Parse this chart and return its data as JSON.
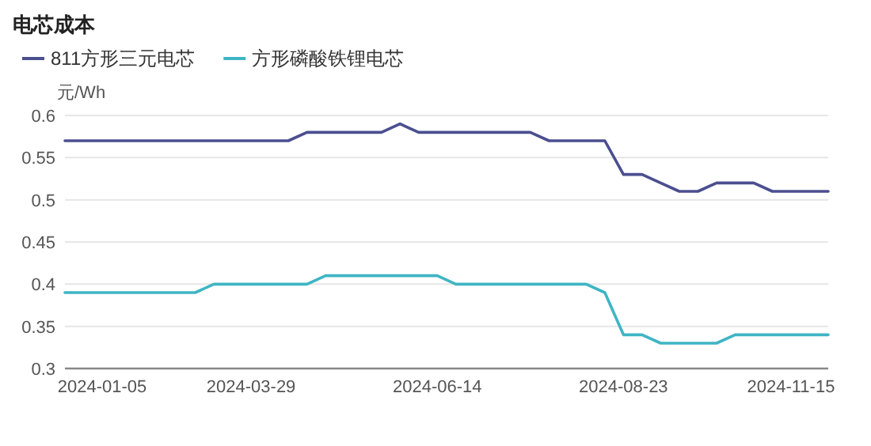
{
  "chart_data": {
    "type": "line",
    "title": "电芯成本",
    "ylabel": "元/Wh",
    "categories": [
      null,
      null,
      "2024-01-05",
      null,
      null,
      null,
      null,
      null,
      null,
      null,
      "2024-03-29",
      null,
      null,
      null,
      null,
      null,
      null,
      null,
      null,
      null,
      "2024-06-14",
      null,
      null,
      null,
      null,
      null,
      null,
      null,
      null,
      null,
      "2024-08-23",
      null,
      null,
      null,
      null,
      null,
      null,
      null,
      null,
      "2024-11-15",
      null,
      null
    ],
    "series": [
      {
        "name": "811方形三元电芯",
        "color": "#4b4f8f",
        "values": [
          0.57,
          0.57,
          0.57,
          0.57,
          0.57,
          0.57,
          0.57,
          0.57,
          0.57,
          0.57,
          0.57,
          0.57,
          0.57,
          0.58,
          0.58,
          0.58,
          0.58,
          0.58,
          0.59,
          0.58,
          0.58,
          0.58,
          0.58,
          0.58,
          0.58,
          0.58,
          0.57,
          0.57,
          0.57,
          0.57,
          0.53,
          0.53,
          0.52,
          0.51,
          0.51,
          0.52,
          0.52,
          0.52,
          0.51,
          0.51,
          0.51,
          0.51
        ]
      },
      {
        "name": "方形磷酸铁锂电芯",
        "color": "#3fb5c4",
        "values": [
          0.39,
          0.39,
          0.39,
          0.39,
          0.39,
          0.39,
          0.39,
          0.39,
          0.4,
          0.4,
          0.4,
          0.4,
          0.4,
          0.4,
          0.41,
          0.41,
          0.41,
          0.41,
          0.41,
          0.41,
          0.41,
          0.4,
          0.4,
          0.4,
          0.4,
          0.4,
          0.4,
          0.4,
          0.4,
          0.39,
          0.34,
          0.34,
          0.33,
          0.33,
          0.33,
          0.33,
          0.34,
          0.34,
          0.34,
          0.34,
          0.34,
          0.34
        ]
      }
    ],
    "ylim": [
      0.3,
      0.6
    ],
    "yticks": [
      0.3,
      0.35,
      0.4,
      0.45,
      0.5,
      0.55,
      0.6
    ],
    "grid": "y",
    "legend": "top left"
  }
}
